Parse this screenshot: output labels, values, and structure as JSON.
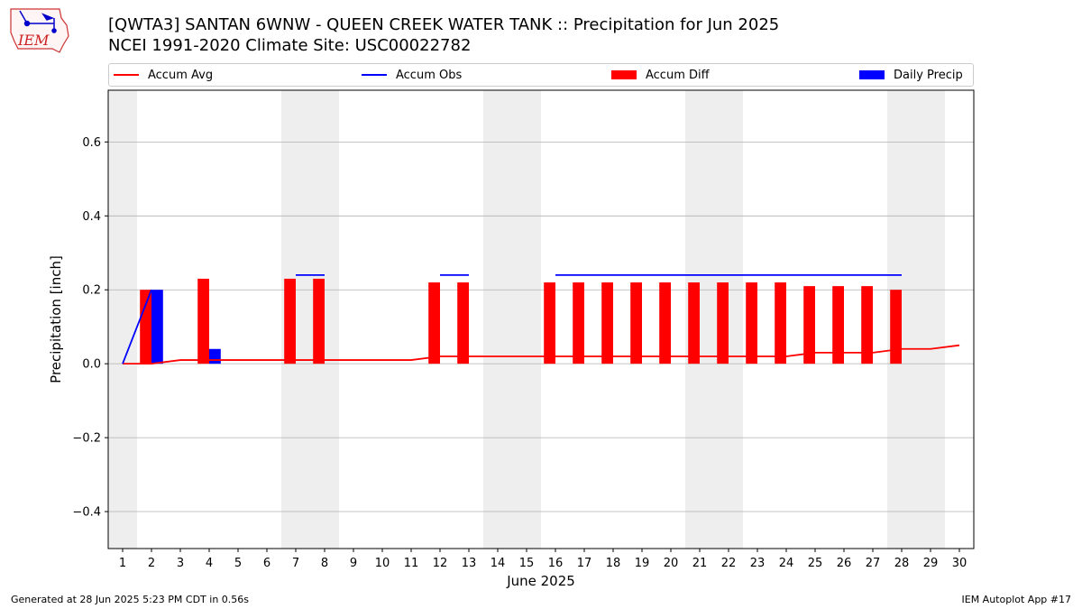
{
  "header": {
    "title_line1": "[QWTA3] SANTAN 6WNW - QUEEN CREEK WATER TANK :: Precipitation for Jun 2025",
    "title_line2": "NCEI 1991-2020 Climate Site: USC00022782"
  },
  "logo": {
    "text": "IEM"
  },
  "legend": {
    "accum_avg": "Accum Avg",
    "accum_obs": "Accum Obs",
    "accum_diff": "Accum Diff",
    "daily_precip": "Daily Precip",
    "placement": "top"
  },
  "footer": {
    "generated": "Generated at 28 Jun 2025 5:23 PM CDT in 0.56s",
    "app": "IEM Autoplot App #17"
  },
  "colors": {
    "accum_avg": "#ff0000",
    "accum_obs": "#0000ff",
    "accum_diff": "#ff0000",
    "daily_precip": "#0000ff",
    "weekend_shade": "#eeeeee",
    "grid": "#b0b0b0"
  },
  "chart_data": {
    "type": "bar",
    "xlabel": "June 2025",
    "ylabel": "Precipitation [inch]",
    "ylim": [
      -0.5,
      0.74
    ],
    "xlim": [
      0.5,
      30.5
    ],
    "grid": "horizontal",
    "yticks": [
      -0.4,
      -0.2,
      0.0,
      0.2,
      0.4,
      0.6
    ],
    "ytick_labels": [
      "−0.4",
      "−0.2",
      "0.0",
      "0.2",
      "0.4",
      "0.6"
    ],
    "x": [
      1,
      2,
      3,
      4,
      5,
      6,
      7,
      8,
      9,
      10,
      11,
      12,
      13,
      14,
      15,
      16,
      17,
      18,
      19,
      20,
      21,
      22,
      23,
      24,
      25,
      26,
      27,
      28,
      29,
      30
    ],
    "weekend_days": [
      1,
      7,
      8,
      14,
      15,
      21,
      22,
      28,
      29
    ],
    "series": [
      {
        "name": "Accum Avg",
        "kind": "line",
        "values": [
          0,
          0,
          0.01,
          0.01,
          0.01,
          0.01,
          0.01,
          0.01,
          0.01,
          0.01,
          0.01,
          0.02,
          0.02,
          0.02,
          0.02,
          0.02,
          0.02,
          0.02,
          0.02,
          0.02,
          0.02,
          0.02,
          0.02,
          0.02,
          0.03,
          0.03,
          0.03,
          0.04,
          0.04,
          0.05
        ]
      },
      {
        "name": "Accum Obs",
        "kind": "line",
        "values": [
          0,
          0.2,
          null,
          null,
          null,
          null,
          0.24,
          0.24,
          null,
          null,
          null,
          0.24,
          0.24,
          null,
          null,
          0.24,
          0.24,
          0.24,
          0.24,
          0.24,
          0.24,
          0.24,
          0.24,
          0.24,
          0.24,
          0.24,
          0.24,
          0.24,
          null,
          null
        ]
      },
      {
        "name": "Accum Diff",
        "kind": "bar",
        "values": [
          null,
          0.2,
          null,
          0.23,
          null,
          null,
          0.23,
          0.23,
          null,
          null,
          null,
          0.22,
          0.22,
          null,
          null,
          0.22,
          0.22,
          0.22,
          0.22,
          0.22,
          0.22,
          0.22,
          0.22,
          0.22,
          0.21,
          0.21,
          0.21,
          0.2,
          null,
          null
        ]
      },
      {
        "name": "Daily Precip",
        "kind": "bar",
        "values": [
          null,
          0.2,
          null,
          0.04,
          null,
          null,
          null,
          null,
          null,
          null,
          null,
          null,
          null,
          null,
          null,
          null,
          null,
          null,
          null,
          null,
          null,
          null,
          null,
          null,
          null,
          null,
          null,
          null,
          null,
          null
        ]
      }
    ]
  }
}
